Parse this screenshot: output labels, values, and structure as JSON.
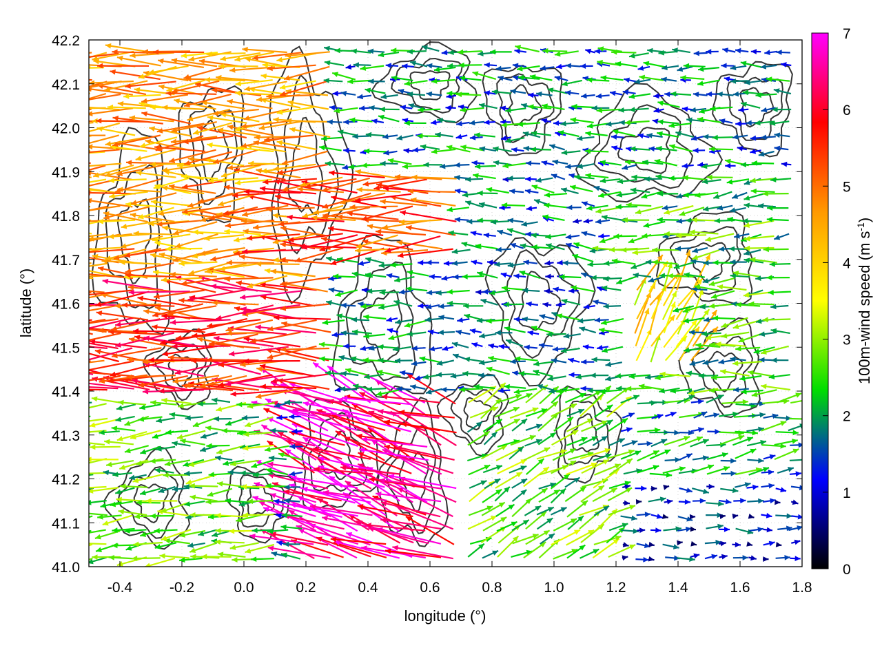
{
  "chart_data": {
    "type": "vector-field",
    "xlabel": "longitude (°)",
    "ylabel": "latitude (°)",
    "xlim": [
      -0.5,
      1.8
    ],
    "ylim": [
      41.0,
      42.2
    ],
    "xticks": [
      -0.4,
      -0.2,
      0.0,
      0.2,
      0.4,
      0.6,
      0.8,
      1.0,
      1.2,
      1.4,
      1.6,
      1.8
    ],
    "xtick_labels": [
      "-0.4",
      "-0.2",
      "0.0",
      "0.2",
      "0.4",
      "0.6",
      "0.8",
      "1.0",
      "1.2",
      "1.4",
      "1.6",
      "1.8"
    ],
    "yticks": [
      41.0,
      41.1,
      41.2,
      41.3,
      41.4,
      41.5,
      41.6,
      41.7,
      41.8,
      41.9,
      42.0,
      42.1,
      42.2
    ],
    "ytick_labels": [
      "41.0",
      "41.1",
      "41.2",
      "41.3",
      "41.4",
      "41.5",
      "41.6",
      "41.7",
      "41.8",
      "41.9",
      "42.0",
      "42.1",
      "42.2"
    ],
    "grid": true,
    "colorbar": {
      "label": "100m-wind speed (m s",
      "label_superscript": "-1",
      "label_suffix": ")",
      "range": [
        0,
        7
      ],
      "ticks": [
        0,
        1,
        2,
        3,
        4,
        5,
        6,
        7
      ],
      "tick_labels": [
        "0",
        "1",
        "2",
        "3",
        "4",
        "5",
        "6",
        "7"
      ],
      "colors": [
        "#000000",
        "#0000ff",
        "#00dd00",
        "#ffff00",
        "#ff9900",
        "#ff0000",
        "#ff00ff"
      ]
    },
    "regions": [
      {
        "lon": [
          -0.5,
          0.3
        ],
        "lat": [
          41.4,
          42.2
        ],
        "speed": 4.6,
        "dir_deg": 182
      },
      {
        "lon": [
          -0.5,
          0.3
        ],
        "lat": [
          41.4,
          41.65
        ],
        "speed": 5.6,
        "dir_deg": 180
      },
      {
        "lon": [
          0.1,
          0.9
        ],
        "lat": [
          41.7,
          41.9
        ],
        "speed": 5.2,
        "dir_deg": 182
      },
      {
        "lon": [
          0.2,
          0.7
        ],
        "lat": [
          41.0,
          41.4
        ],
        "speed": 6.5,
        "dir_deg": 160
      },
      {
        "lon": [
          -0.5,
          0.1
        ],
        "lat": [
          41.0,
          41.4
        ],
        "speed": 2.6,
        "dir_deg": 185
      },
      {
        "lon": [
          0.3,
          1.2
        ],
        "lat": [
          41.9,
          42.2
        ],
        "speed": 1.8,
        "dir_deg": 178
      },
      {
        "lon": [
          0.7,
          1.4
        ],
        "lat": [
          41.4,
          41.9
        ],
        "speed": 1.7,
        "dir_deg": 175
      },
      {
        "lon": [
          1.2,
          1.8
        ],
        "lat": [
          41.4,
          41.9
        ],
        "speed": 2.4,
        "dir_deg": 185
      },
      {
        "lon": [
          1.25,
          1.45
        ],
        "lat": [
          41.45,
          41.65
        ],
        "speed": 3.8,
        "dir_deg": 60
      },
      {
        "lon": [
          0.7,
          1.2
        ],
        "lat": [
          41.0,
          41.4
        ],
        "speed": 2.6,
        "dir_deg": 30
      },
      {
        "lon": [
          1.2,
          1.8
        ],
        "lat": [
          41.0,
          41.2
        ],
        "speed": 1.2,
        "dir_deg": 0
      },
      {
        "lon": [
          1.2,
          1.8
        ],
        "lat": [
          41.2,
          41.4
        ],
        "speed": 2.0,
        "dir_deg": 10
      }
    ]
  }
}
